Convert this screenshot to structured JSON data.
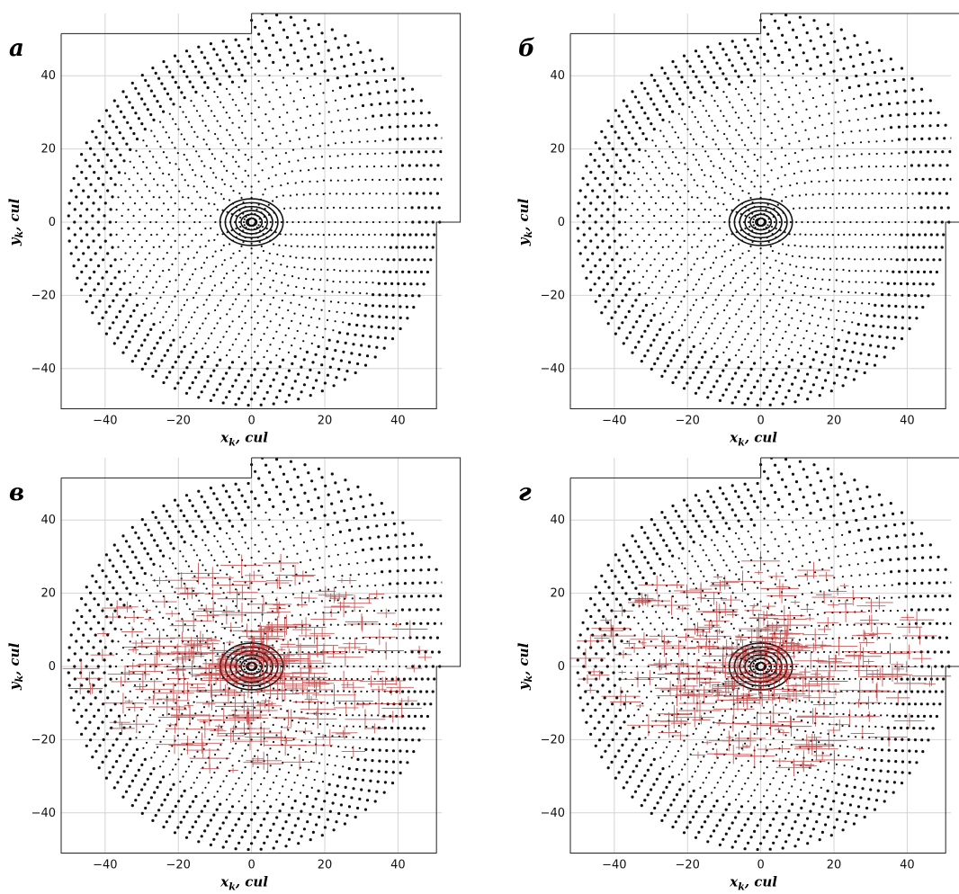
{
  "figure": {
    "colors": {
      "points": "#111111",
      "error_bars": "#b22222",
      "grid": "#d4d4d4",
      "frame": "#222222"
    }
  },
  "chart_data": [
    {
      "type": "scatter",
      "panel_label": "а",
      "xlabel": "x",
      "xlabel_sub": "k",
      "xlabel_unit": ", cul",
      "ylabel": "y",
      "ylabel_sub": "k",
      "ylabel_unit": ", cul",
      "xlim": [
        -52,
        52
      ],
      "ylim": [
        -51,
        57
      ],
      "xticks": [
        -40,
        -20,
        0,
        20,
        40
      ],
      "yticks": [
        -40,
        -20,
        0,
        20,
        40
      ],
      "grid": true,
      "disk_radius": 50,
      "offset_quadrant": {
        "x_range": [
          0,
          57
        ],
        "y_range": [
          0,
          57
        ],
        "radius": 57
      },
      "error_bars": false,
      "center_rings": "dense concentric point rings near origin"
    },
    {
      "type": "scatter",
      "panel_label": "б",
      "xlabel": "x",
      "xlabel_sub": "k",
      "xlabel_unit": ", cul",
      "ylabel": "y",
      "ylabel_sub": "k",
      "ylabel_unit": ", cul",
      "xlim": [
        -52,
        52
      ],
      "ylim": [
        -51,
        57
      ],
      "xticks": [
        -40,
        -20,
        0,
        20,
        40
      ],
      "yticks": [
        -40,
        -20,
        0,
        20,
        40
      ],
      "grid": true,
      "disk_radius": 50,
      "offset_quadrant": {
        "x_range": [
          0,
          57
        ],
        "y_range": [
          0,
          57
        ],
        "radius": 57
      },
      "error_bars": false,
      "center_rings": "dense concentric point rings near origin"
    },
    {
      "type": "scatter",
      "panel_label": "в",
      "xlabel": "x",
      "xlabel_sub": "k",
      "xlabel_unit": ", cul",
      "ylabel": "y",
      "ylabel_sub": "k",
      "ylabel_unit": ", cul",
      "xlim": [
        -52,
        52
      ],
      "ylim": [
        -51,
        57
      ],
      "xticks": [
        -40,
        -20,
        0,
        20,
        40
      ],
      "yticks": [
        -40,
        -20,
        0,
        20,
        40
      ],
      "grid": true,
      "disk_radius": 50,
      "offset_quadrant": {
        "x_range": [
          0,
          57
        ],
        "y_range": [
          0,
          57
        ],
        "radius": 57
      },
      "error_bars": true,
      "error_bar_color": "#b22222",
      "center_rings": "dense concentric point rings near origin"
    },
    {
      "type": "scatter",
      "panel_label": "г",
      "xlabel": "x",
      "xlabel_sub": "k",
      "xlabel_unit": ", cul",
      "ylabel": "y",
      "ylabel_sub": "k",
      "ylabel_unit": ", cul",
      "xlim": [
        -52,
        52
      ],
      "ylim": [
        -51,
        57
      ],
      "xticks": [
        -40,
        -20,
        0,
        20,
        40
      ],
      "yticks": [
        -40,
        -20,
        0,
        20,
        40
      ],
      "grid": true,
      "disk_radius": 50,
      "offset_quadrant": {
        "x_range": [
          0,
          57
        ],
        "y_range": [
          0,
          57
        ],
        "radius": 57
      },
      "error_bars": true,
      "error_bar_color": "#b22222",
      "center_rings": "dense concentric point rings near origin"
    }
  ]
}
